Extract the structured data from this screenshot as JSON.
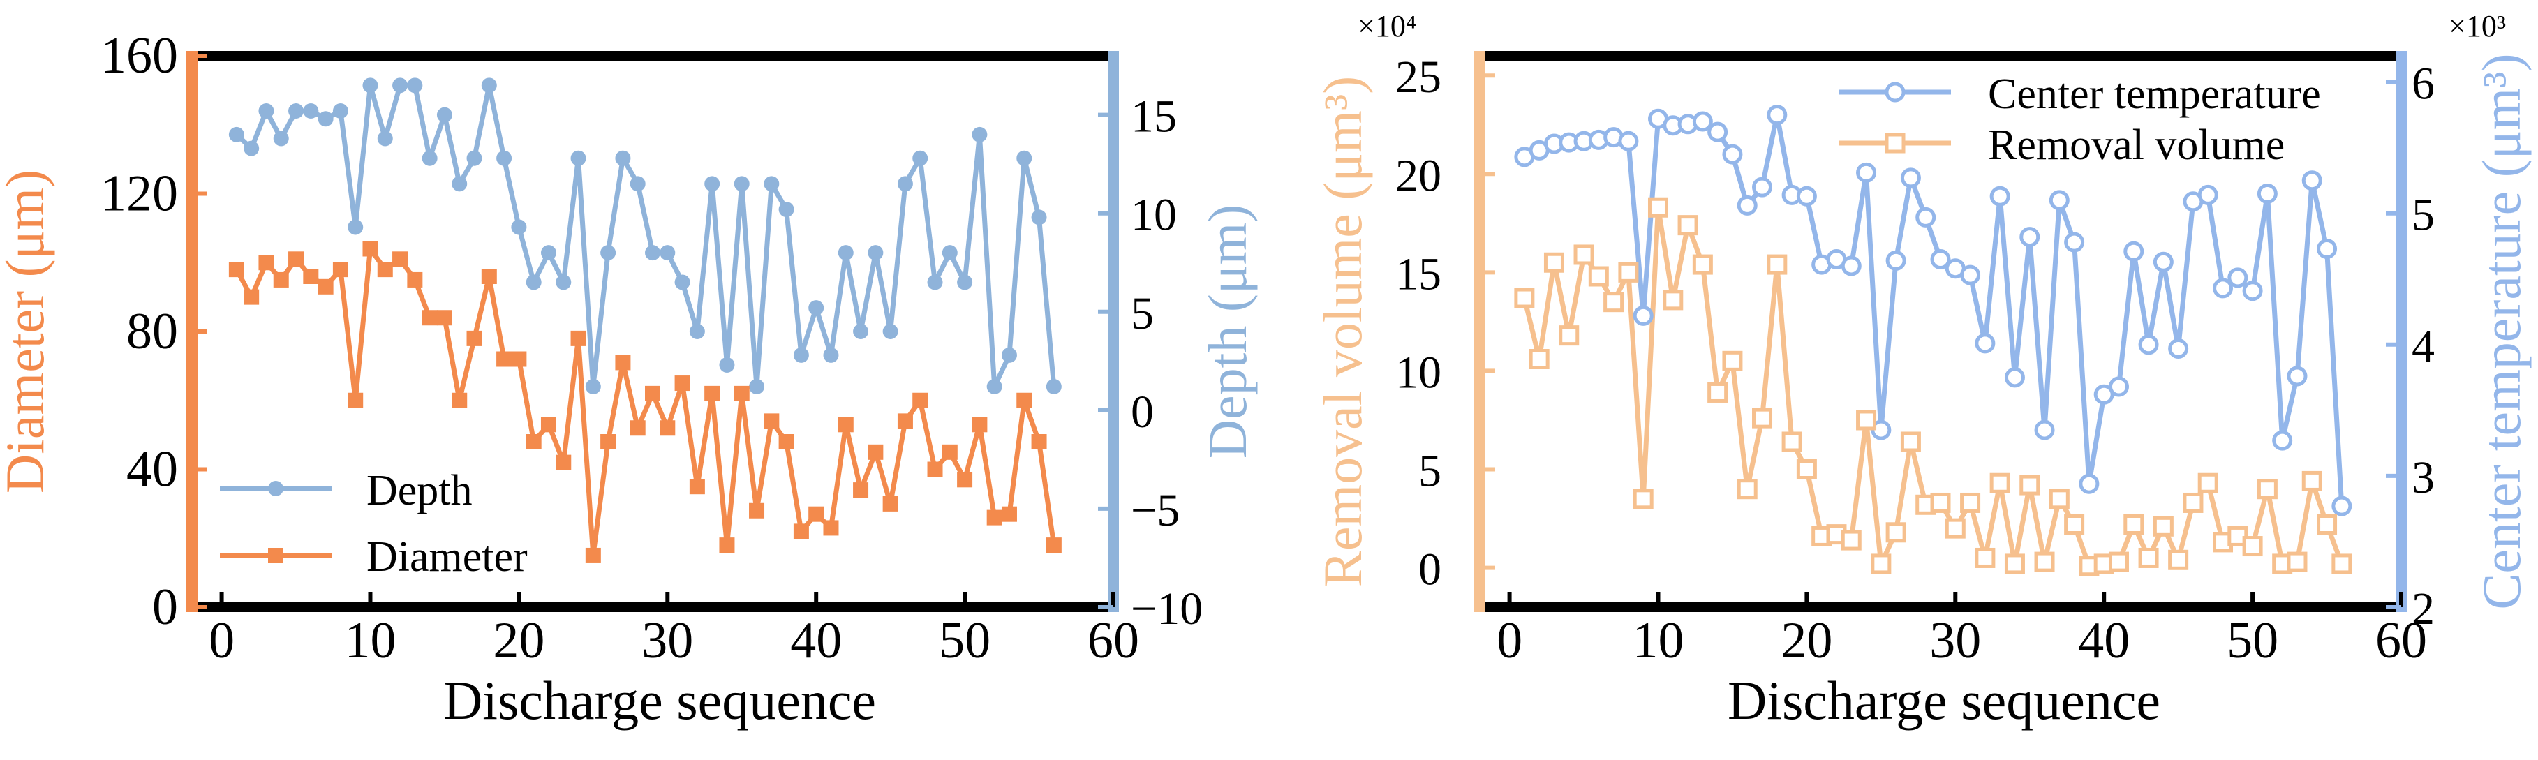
{
  "colors": {
    "orange": "#F38A4C",
    "blue": "#8FB3DA",
    "light_orange": "#F6C08E",
    "light_blue": "#93B6EA",
    "black": "#000000"
  },
  "chart_data": [
    {
      "type": "line",
      "x_axis": {
        "label": "Discharge sequence",
        "range": [
          -2,
          60
        ],
        "ticks": [
          0,
          10,
          20,
          30,
          40,
          50,
          60
        ]
      },
      "left_axis": {
        "label": "Diameter (μm)",
        "range": [
          0,
          160
        ],
        "ticks": [
          0,
          40,
          80,
          120,
          160
        ]
      },
      "right_axis": {
        "label": "Depth (μm)",
        "range": [
          -10,
          18
        ],
        "ticks": [
          -10,
          -5,
          0,
          5,
          10,
          15
        ]
      },
      "legend": {
        "position": "bottom-left",
        "entries": [
          "Depth",
          "Diameter"
        ]
      },
      "series": [
        {
          "name": "Depth",
          "axis": "right",
          "marker": "circle",
          "x": [
            1,
            2,
            3,
            4,
            5,
            6,
            7,
            8,
            9,
            10,
            11,
            12,
            13,
            14,
            15,
            16,
            17,
            18,
            19,
            20,
            21,
            22,
            23,
            24,
            25,
            26,
            27,
            28,
            29,
            30,
            31,
            32,
            33,
            34,
            35,
            36,
            37,
            38,
            39,
            40,
            41,
            42,
            43,
            44,
            45,
            46,
            47,
            48,
            49,
            50,
            51,
            52,
            53,
            54,
            55,
            56
          ],
          "values": [
            14,
            13.3,
            15.2,
            13.8,
            15.2,
            15.2,
            14.8,
            15.2,
            9.3,
            16.5,
            13.8,
            16.5,
            16.5,
            12.8,
            15,
            11.5,
            12.8,
            16.5,
            12.8,
            9.3,
            6.5,
            8,
            6.5,
            12.8,
            1.2,
            8,
            12.8,
            11.5,
            8,
            8,
            6.5,
            4,
            11.5,
            2.3,
            11.5,
            1.2,
            11.5,
            10.2,
            2.8,
            5.2,
            2.8,
            8,
            4,
            8,
            4,
            11.5,
            12.8,
            6.5,
            8,
            6.5,
            14,
            1.2,
            2.8,
            12.8,
            9.8,
            1.2
          ]
        },
        {
          "name": "Diameter",
          "axis": "left",
          "marker": "square",
          "x": [
            1,
            2,
            3,
            4,
            5,
            6,
            7,
            8,
            9,
            10,
            11,
            12,
            13,
            14,
            15,
            16,
            17,
            18,
            19,
            20,
            21,
            22,
            23,
            24,
            25,
            26,
            27,
            28,
            29,
            30,
            31,
            32,
            33,
            34,
            35,
            36,
            37,
            38,
            39,
            40,
            41,
            42,
            43,
            44,
            45,
            46,
            47,
            48,
            49,
            50,
            51,
            52,
            53,
            54,
            55,
            56
          ],
          "values": [
            98,
            90,
            100,
            95,
            101,
            96,
            93,
            98,
            60,
            104,
            98,
            101,
            95,
            84,
            84,
            60,
            78,
            96,
            72,
            72,
            48,
            53,
            42,
            78,
            15,
            48,
            71,
            52,
            62,
            52,
            65,
            35,
            62,
            18,
            62,
            28,
            54,
            48,
            22,
            27,
            23,
            53,
            34,
            45,
            30,
            54,
            60,
            40,
            45,
            37,
            53,
            26,
            27,
            60,
            48,
            18
          ]
        }
      ]
    },
    {
      "type": "line",
      "x_axis": {
        "label": "Discharge sequence",
        "range": [
          -2,
          60
        ],
        "ticks": [
          0,
          10,
          20,
          30,
          40,
          50,
          60
        ]
      },
      "left_axis": {
        "label": "Removal volume (μm³)",
        "multiplier": "×10⁴",
        "range": [
          -2,
          26
        ],
        "ticks": [
          0,
          5,
          10,
          15,
          20,
          25
        ]
      },
      "right_axis": {
        "label": "Center temperature (μm³)",
        "multiplier": "×10³",
        "range": [
          2,
          6.2
        ],
        "ticks": [
          2,
          3,
          4,
          5,
          6
        ]
      },
      "legend": {
        "position": "top-right",
        "entries": [
          "Center temperature",
          "Removal volume"
        ]
      },
      "series": [
        {
          "name": "Center temperature",
          "axis": "right",
          "marker": "open-circle",
          "x": [
            1,
            2,
            3,
            4,
            5,
            6,
            7,
            8,
            9,
            10,
            11,
            12,
            13,
            14,
            15,
            16,
            17,
            18,
            19,
            20,
            21,
            22,
            23,
            24,
            25,
            26,
            27,
            28,
            29,
            30,
            31,
            32,
            33,
            34,
            35,
            36,
            37,
            38,
            39,
            40,
            41,
            42,
            43,
            44,
            45,
            46,
            47,
            48,
            49,
            50,
            51,
            52,
            53,
            54,
            55,
            56
          ],
          "values": [
            5.43,
            5.48,
            5.53,
            5.54,
            5.55,
            5.56,
            5.58,
            5.55,
            4.22,
            5.72,
            5.67,
            5.68,
            5.7,
            5.62,
            5.45,
            5.06,
            5.2,
            5.75,
            5.14,
            5.13,
            4.61,
            4.65,
            4.6,
            5.31,
            3.35,
            4.64,
            5.27,
            4.97,
            4.65,
            4.58,
            4.53,
            4.01,
            5.13,
            3.75,
            4.82,
            3.35,
            5.1,
            4.78,
            2.94,
            3.62,
            3.68,
            4.71,
            4.0,
            4.63,
            3.97,
            5.09,
            5.14,
            4.43,
            4.51,
            4.41,
            5.15,
            3.27,
            3.76,
            5.25,
            4.73,
            2.77
          ]
        },
        {
          "name": "Removal volume",
          "axis": "left",
          "marker": "open-square",
          "x": [
            1,
            2,
            3,
            4,
            5,
            6,
            7,
            8,
            9,
            10,
            11,
            12,
            13,
            14,
            15,
            16,
            17,
            18,
            19,
            20,
            21,
            22,
            23,
            24,
            25,
            26,
            27,
            28,
            29,
            30,
            31,
            32,
            33,
            34,
            35,
            36,
            37,
            38,
            39,
            40,
            41,
            42,
            43,
            44,
            45,
            46,
            47,
            48,
            49,
            50,
            51,
            52,
            53,
            54,
            55,
            56
          ],
          "values": [
            13.7,
            10.6,
            15.5,
            11.8,
            15.9,
            14.8,
            13.5,
            15.0,
            3.5,
            18.3,
            13.6,
            17.4,
            15.4,
            8.9,
            10.5,
            4.0,
            7.6,
            15.4,
            6.4,
            5.0,
            1.6,
            1.7,
            1.4,
            7.5,
            0.2,
            1.8,
            6.4,
            3.2,
            3.3,
            2.0,
            3.3,
            0.5,
            4.3,
            0.2,
            4.2,
            0.3,
            3.5,
            2.2,
            0.1,
            0.2,
            0.3,
            2.2,
            0.5,
            2.1,
            0.4,
            3.3,
            4.3,
            1.3,
            1.6,
            1.1,
            4.0,
            0.2,
            0.3,
            4.4,
            2.2,
            0.2
          ]
        }
      ]
    }
  ]
}
